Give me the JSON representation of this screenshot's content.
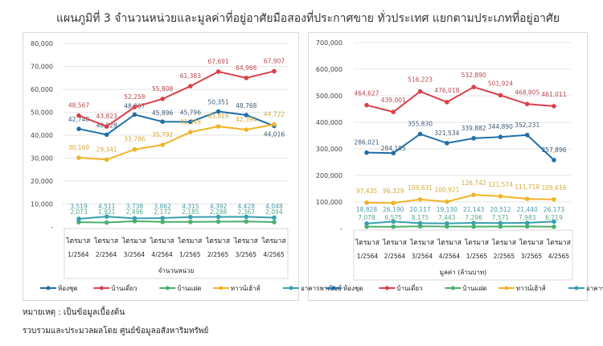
{
  "title": "แผนภูมิที่ 3 จำนวนหน่วยและมูลค่าที่อยู่อาศัยมือสองที่ประกาศขาย ทั่วประเทศ แยกตามประเภทที่อยู่อาศัย",
  "notes": {
    "remark": "หมายเหตุ : เป็นข้อมูลเบื้องต้น",
    "source": "รวบรวมและประมวลผลโดย ศูนย์ข้อมูลอสังหาริมทรัพย์"
  },
  "colors": {
    "condo": "#1f6fa8",
    "detached": "#d9414a",
    "twin": "#4caf6e",
    "townhouse": "#f0b429",
    "commercial": "#3a9fb0"
  },
  "chart_data": [
    {
      "type": "line",
      "title": "",
      "xlabel": "จำนวนหน่วย",
      "ylabel": "",
      "categories_top": [
        "ไตรมาส",
        "ไตรมาส",
        "ไตรมาส",
        "ไตรมาส",
        "ไตรมาส",
        "ไตรมาส",
        "ไตรมาส",
        "ไตรมาส"
      ],
      "categories": [
        "1/2564",
        "2/2564",
        "3/2564",
        "4/2564",
        "1/2565",
        "2/2565",
        "3/2565",
        "4/2565"
      ],
      "ylim": [
        0,
        80000
      ],
      "yticks": [
        "-",
        "10,000",
        "20,000",
        "30,000",
        "40,000",
        "50,000",
        "60,000",
        "70,000",
        "80,000"
      ],
      "grid": true,
      "legend": "bottom",
      "series": [
        {
          "key": "condo",
          "name": "ห้องชุด",
          "values": [
            42748,
            40228,
            48967,
            45896,
            45796,
            50351,
            48768,
            44016
          ],
          "labels": [
            "42,748",
            "40,228",
            "48,967",
            "45,896",
            "45,796",
            "50,351",
            "48,768",
            "44,016"
          ]
        },
        {
          "key": "detached",
          "name": "บ้านเดี่ยว",
          "values": [
            48567,
            43823,
            52258,
            55808,
            61383,
            67691,
            64966,
            67907
          ],
          "labels": [
            "48,567",
            "43,823",
            "52,258",
            "55,808",
            "61,383",
            "67,691",
            "64,966",
            "67,907"
          ]
        },
        {
          "key": "twin",
          "name": "บ้านแฝด",
          "values": [
            2073,
            1921,
            2496,
            2172,
            2185,
            2288,
            2367,
            2094
          ],
          "labels": [
            "2,073",
            "1,921",
            "2,496",
            "2,172",
            "2,185",
            "2,288",
            "2,367",
            "2,094"
          ]
        },
        {
          "key": "townhouse",
          "name": "ทาวน์เฮ้าส์",
          "values": [
            30169,
            29341,
            33786,
            35792,
            41348,
            43819,
            42394,
            44722
          ],
          "labels": [
            "30,169",
            "29,341",
            "33,786",
            "35,792",
            "41,348",
            "43,819",
            "42,394",
            "44,722"
          ]
        },
        {
          "key": "commercial",
          "name": "อาคารพาณิชย์",
          "values": [
            3519,
            4511,
            3738,
            3862,
            4315,
            4392,
            4428,
            4048
          ],
          "labels": [
            "3,519",
            "4,511",
            "3,738",
            "3,862",
            "4,315",
            "4,392",
            "4,428",
            "4,048"
          ]
        }
      ]
    },
    {
      "type": "line",
      "title": "",
      "xlabel": "มูลค่า (ล้านบาท)",
      "ylabel": "",
      "categories_top": [
        "ไตรมาส",
        "ไตรมาส",
        "ไตรมาส",
        "ไตรมาส",
        "ไตรมาส",
        "ไตรมาส",
        "ไตรมาส",
        "ไตรมาส"
      ],
      "categories": [
        "1/2564",
        "2/2564",
        "3/2564",
        "4/2564",
        "1/2565",
        "2/2565",
        "3/2565",
        "4/2565"
      ],
      "ylim": [
        0,
        700000
      ],
      "yticks": [
        "-",
        "100,000",
        "200,000",
        "300,000",
        "400,000",
        "500,000",
        "600,000",
        "700,000"
      ],
      "grid": true,
      "legend": "bottom",
      "series": [
        {
          "key": "condo",
          "name": "ห้องชุด",
          "values": [
            286021,
            284105,
            355830,
            321534,
            339882,
            344890,
            352231,
            257896
          ],
          "labels": [
            "286,021",
            "284,105",
            "355,830",
            "321,534",
            "339,882",
            "344,890",
            "352,231",
            "257,896"
          ]
        },
        {
          "key": "detached",
          "name": "บ้านเดี่ยว",
          "values": [
            464627,
            439001,
            516223,
            476018,
            532890,
            501924,
            468805,
            461011
          ],
          "labels": [
            "464,627",
            "439,001",
            "516,223",
            "476,018",
            "532,890",
            "501,924",
            "468,805",
            "461,011"
          ]
        },
        {
          "key": "twin",
          "name": "บ้านแฝด",
          "values": [
            7078,
            6575,
            8175,
            7443,
            7296,
            7571,
            7983,
            6719
          ],
          "labels": [
            "7,078",
            "6,575",
            "8,175",
            "7,443",
            "7,296",
            "7,571",
            "7,983",
            "6,719"
          ]
        },
        {
          "key": "townhouse",
          "name": "ทาวน์เฮ้าส์",
          "values": [
            97435,
            96329,
            109631,
            100921,
            126742,
            121574,
            111718,
            109616
          ],
          "labels": [
            "97,435",
            "96,329",
            "109,631",
            "100,921",
            "126,742",
            "121,574",
            "111,718",
            "109,616"
          ]
        },
        {
          "key": "commercial",
          "name": "อาคารพาณิชย์",
          "values": [
            18828,
            26190,
            20117,
            19130,
            21143,
            20512,
            21440,
            26173
          ],
          "labels": [
            "18,828",
            "26,190",
            "20,117",
            "19,130",
            "21,143",
            "20,512",
            "21,440",
            "26,173"
          ]
        }
      ]
    }
  ]
}
